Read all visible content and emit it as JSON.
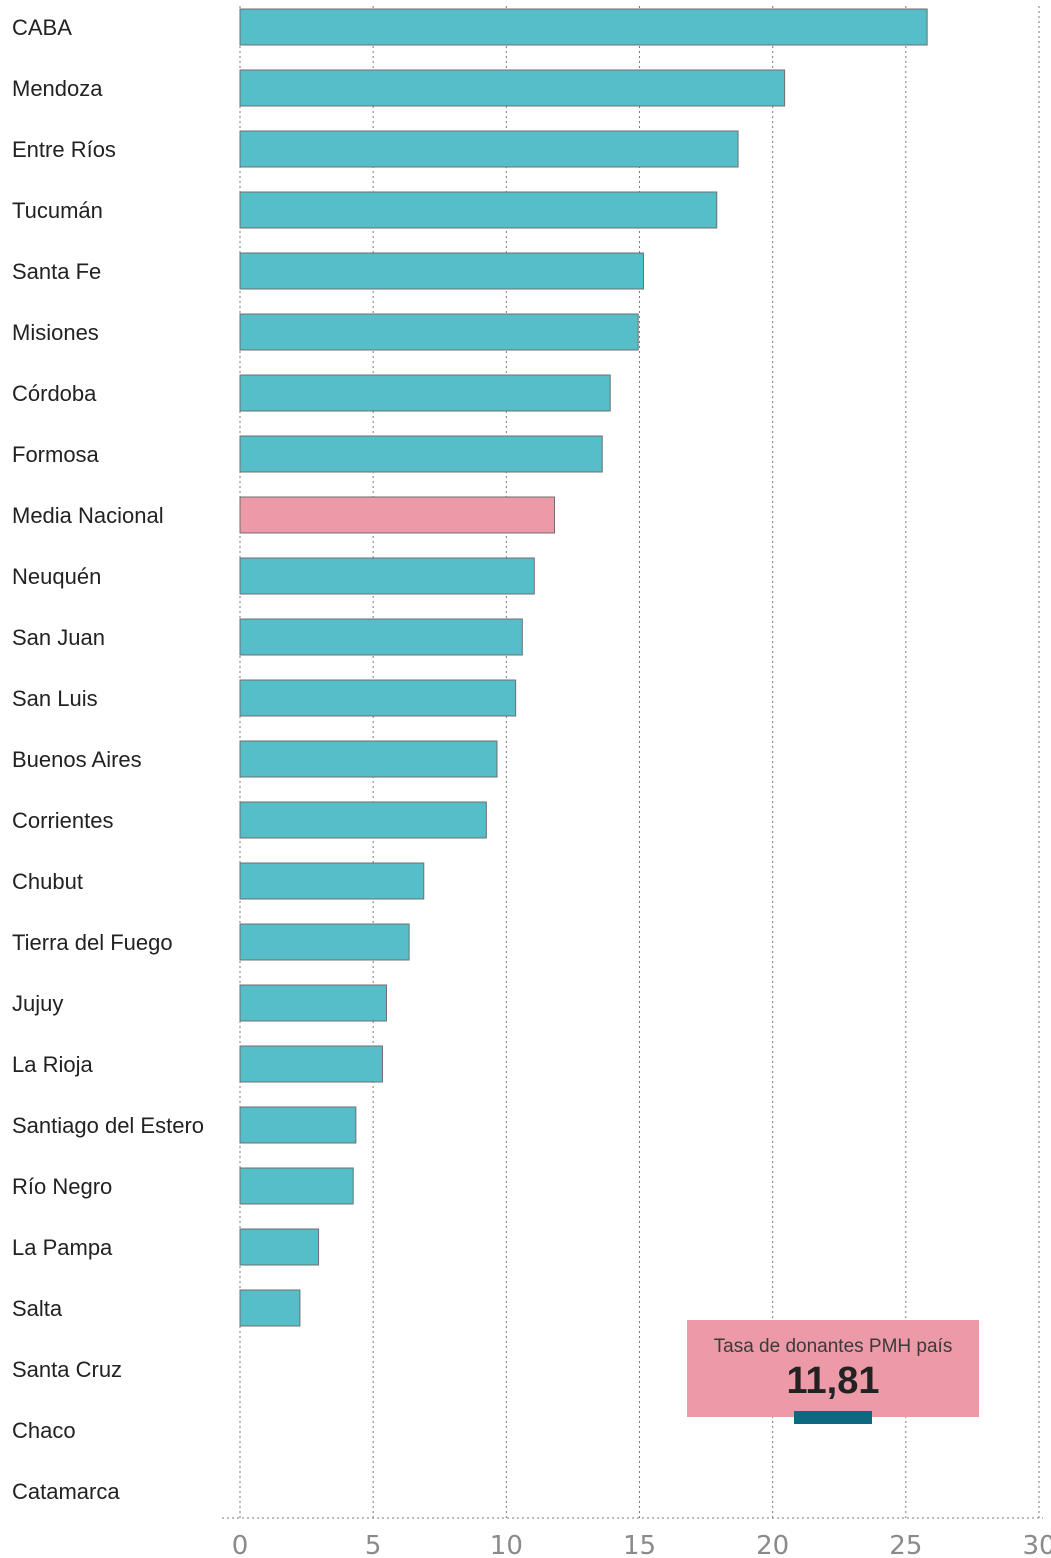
{
  "chart_data": {
    "type": "bar",
    "orientation": "horizontal",
    "categories": [
      "CABA",
      "Mendoza",
      "Entre Ríos",
      "Tucumán",
      "Santa Fe",
      "Misiones",
      "Córdoba",
      "Formosa",
      "Media Nacional",
      "Neuquén",
      "San Juan",
      "San Luis",
      "Buenos Aires",
      "Corrientes",
      "Chubut",
      "Tierra del Fuego",
      "Jujuy",
      "La Rioja",
      "Santiago del Estero",
      "Río Negro",
      "La Pampa",
      "Salta",
      "Santa Cruz",
      "Chaco",
      "Catamarca"
    ],
    "values": [
      25.8,
      20.45,
      18.7,
      17.9,
      15.15,
      14.95,
      13.9,
      13.6,
      11.81,
      11.05,
      10.6,
      10.35,
      9.65,
      9.25,
      6.9,
      6.35,
      5.5,
      5.35,
      4.35,
      4.25,
      2.95,
      2.25,
      0,
      0,
      0
    ],
    "highlight_category": "Media Nacional",
    "xlim": [
      0,
      30
    ],
    "xticks": [
      "0",
      "5",
      "10",
      "15",
      "20",
      "25",
      "30"
    ],
    "grid": true,
    "colors": {
      "bar": "#56bec8",
      "highlight": "#ec9aa8",
      "edge": "#6f6f6f"
    }
  },
  "callout": {
    "title": "Tasa de donantes PMH país",
    "value": "11,81",
    "colors": {
      "background": "#ec9aa8",
      "underline": "#0e6882"
    }
  }
}
